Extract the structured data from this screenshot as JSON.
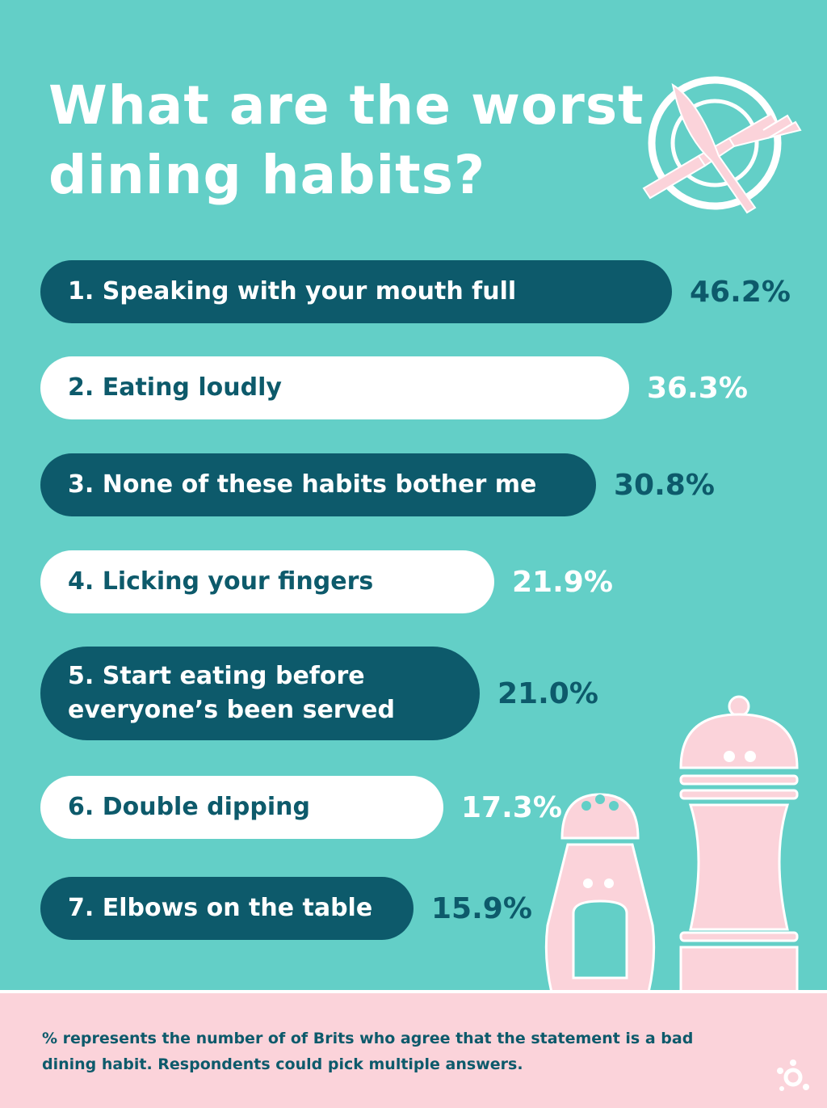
{
  "chart_data": {
    "type": "bar",
    "orientation": "horizontal",
    "title": "What are the worst dining habits?",
    "categories": [
      "1. Speaking with your mouth full",
      "2. Eating loudly",
      "3. None of these habits bother me",
      "4. Licking your fingers",
      "5. Start eating before everyone’s been served",
      "6. Double dipping",
      "7. Elbows on the table"
    ],
    "values": [
      46.2,
      36.3,
      30.8,
      21.9,
      21.0,
      17.3,
      15.9
    ],
    "value_labels": [
      "46.2%",
      "36.3%",
      "30.8%",
      "21.9%",
      "21.0%",
      "17.3%",
      "15.9%"
    ],
    "unit": "%"
  },
  "note": "% represents the number of of Brits who agree that the statement is a bad dining habit. Respondents could pick multiple answers.",
  "colors": {
    "background": "#63cfc7",
    "dark": "#0d5a6b",
    "light": "#ffffff",
    "footer": "#fbd3da"
  },
  "icons": [
    "plate-cutlery-icon",
    "salt-shaker-icon",
    "pepper-mill-icon",
    "brand-logo-icon"
  ]
}
